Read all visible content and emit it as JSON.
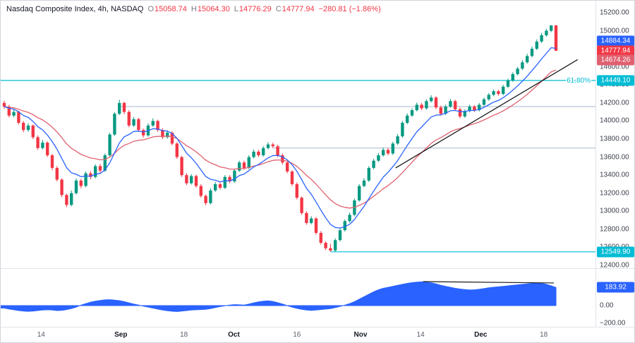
{
  "legend": {
    "symbol_text": "Nasdaq Composite Index, 4h, NASDAQ",
    "o_label": "O",
    "o": "15058.74",
    "h_label": "H",
    "h": "15064.30",
    "l_label": "L",
    "l": "14776.29",
    "c_label": "C",
    "c": "14777.94",
    "change": "−280.81 (−1.86%)"
  },
  "colors": {
    "up": "#089981",
    "down": "#f23645",
    "ma_fast": "#2962ff",
    "ma_slow": "#e0606f",
    "indicator": "#2962ff",
    "level": "#00bcd4",
    "ray": "#a9b8cc",
    "trend": "#1a1a1a",
    "axis_text": "#3c404b"
  },
  "price_axis": {
    "ticks": [
      {
        "t": "15200.00",
        "p": 15200
      },
      {
        "t": "15000.00",
        "p": 15000
      },
      {
        "t": "14800.00",
        "p": 14800
      },
      {
        "t": "14600.00",
        "p": 14600
      },
      {
        "t": "14400.00",
        "p": 14400
      },
      {
        "t": "14200.00",
        "p": 14200
      },
      {
        "t": "14000.00",
        "p": 14000
      },
      {
        "t": "13800.00",
        "p": 13800
      },
      {
        "t": "13600.00",
        "p": 13600
      },
      {
        "t": "13400.00",
        "p": 13400
      },
      {
        "t": "13200.00",
        "p": 13200
      },
      {
        "t": "13000.00",
        "p": 13000
      },
      {
        "t": "12800.00",
        "p": 12800
      },
      {
        "t": "12600.00",
        "p": 12600
      },
      {
        "t": "12400.00",
        "p": 12400
      }
    ],
    "badges": [
      {
        "t": "14884.34",
        "p": 14884.34,
        "bg": "#2962ff"
      },
      {
        "t": "14777.94",
        "p": 14777.94,
        "bg": "#f23645"
      },
      {
        "t": "14674.26",
        "p": 14674.26,
        "bg": "#e0606f"
      },
      {
        "t": "14449.10",
        "p": 14449.1,
        "bg": "#00bcd4"
      },
      {
        "t": "12549.90",
        "p": 12549.9,
        "bg": "#00bcd4"
      }
    ]
  },
  "time_axis": {
    "labels": [
      {
        "t": "14",
        "f": 0.068,
        "month": false
      },
      {
        "t": "Sep",
        "f": 0.202,
        "month": true
      },
      {
        "t": "18",
        "f": 0.308,
        "month": false
      },
      {
        "t": "Oct",
        "f": 0.392,
        "month": true
      },
      {
        "t": "16",
        "f": 0.498,
        "month": false
      },
      {
        "t": "Nov",
        "f": 0.605,
        "month": true
      },
      {
        "t": "14",
        "f": 0.706,
        "month": false
      },
      {
        "t": "Dec",
        "f": 0.807,
        "month": true
      },
      {
        "t": "18",
        "f": 0.913,
        "month": false
      }
    ]
  },
  "chart_data": {
    "type": "candlestick",
    "title": "Nasdaq Composite Index",
    "interval": "4h",
    "exchange": "NASDAQ",
    "ylim": [
      12400,
      15200
    ],
    "grid": false,
    "last_bar": {
      "o": 15058.74,
      "h": 15064.3,
      "l": 14776.29,
      "c": 14777.94,
      "change": -280.81,
      "change_pct": -1.86
    },
    "candles": [
      [
        14200,
        14225,
        14135,
        14160
      ],
      [
        14160,
        14180,
        14040,
        14060
      ],
      [
        14060,
        14130,
        14040,
        14100
      ],
      [
        14100,
        14115,
        13960,
        13980
      ],
      [
        13980,
        14000,
        13875,
        13900
      ],
      [
        13900,
        13975,
        13880,
        13950
      ],
      [
        13950,
        13960,
        13800,
        13820
      ],
      [
        13820,
        13840,
        13680,
        13700
      ],
      [
        13700,
        13790,
        13685,
        13760
      ],
      [
        13760,
        13775,
        13600,
        13620
      ],
      [
        13620,
        13635,
        13455,
        13480
      ],
      [
        13480,
        13500,
        13330,
        13350
      ],
      [
        13350,
        13365,
        13155,
        13180
      ],
      [
        13180,
        13195,
        13045,
        13070
      ],
      [
        13070,
        13230,
        13055,
        13200
      ],
      [
        13200,
        13365,
        13185,
        13340
      ],
      [
        13340,
        13360,
        13255,
        13280
      ],
      [
        13280,
        13440,
        13265,
        13420
      ],
      [
        13420,
        13445,
        13355,
        13380
      ],
      [
        13380,
        13520,
        13365,
        13500
      ],
      [
        13500,
        13525,
        13425,
        13450
      ],
      [
        13450,
        13640,
        13435,
        13620
      ],
      [
        13620,
        13870,
        13605,
        13850
      ],
      [
        13850,
        14100,
        13835,
        14080
      ],
      [
        14080,
        14235,
        14065,
        14200
      ],
      [
        14200,
        14215,
        14075,
        14100
      ],
      [
        14100,
        14120,
        13930,
        13950
      ],
      [
        13950,
        14045,
        13935,
        14020
      ],
      [
        14020,
        14035,
        13880,
        13900
      ],
      [
        13900,
        13915,
        13815,
        13840
      ],
      [
        13840,
        13975,
        13825,
        13950
      ],
      [
        13950,
        14030,
        13935,
        14000
      ],
      [
        14000,
        14015,
        13880,
        13900
      ],
      [
        13900,
        13920,
        13800,
        13820
      ],
      [
        13820,
        13895,
        13805,
        13870
      ],
      [
        13870,
        13885,
        13730,
        13750
      ],
      [
        13750,
        13765,
        13580,
        13600
      ],
      [
        13600,
        13615,
        13380,
        13400
      ],
      [
        13400,
        13420,
        13290,
        13310
      ],
      [
        13310,
        13410,
        13295,
        13390
      ],
      [
        13390,
        13405,
        13260,
        13280
      ],
      [
        13280,
        13300,
        13150,
        13170
      ],
      [
        13170,
        13185,
        13065,
        13090
      ],
      [
        13090,
        13255,
        13075,
        13230
      ],
      [
        13230,
        13325,
        13215,
        13300
      ],
      [
        13300,
        13320,
        13240,
        13260
      ],
      [
        13260,
        13400,
        13245,
        13380
      ],
      [
        13380,
        13400,
        13310,
        13330
      ],
      [
        13330,
        13470,
        13315,
        13450
      ],
      [
        13450,
        13560,
        13435,
        13540
      ],
      [
        13540,
        13560,
        13460,
        13480
      ],
      [
        13480,
        13620,
        13465,
        13600
      ],
      [
        13600,
        13685,
        13585,
        13660
      ],
      [
        13660,
        13680,
        13600,
        13620
      ],
      [
        13620,
        13720,
        13605,
        13700
      ],
      [
        13700,
        13765,
        13685,
        13740
      ],
      [
        13740,
        13760,
        13700,
        13720
      ],
      [
        13720,
        13735,
        13600,
        13620
      ],
      [
        13620,
        13640,
        13520,
        13540
      ],
      [
        13540,
        13555,
        13420,
        13440
      ],
      [
        13440,
        13455,
        13280,
        13300
      ],
      [
        13300,
        13320,
        13130,
        13150
      ],
      [
        13150,
        13165,
        12960,
        12980
      ],
      [
        12980,
        13000,
        12850,
        12870
      ],
      [
        12870,
        12945,
        12855,
        12920
      ],
      [
        12920,
        12935,
        12740,
        12760
      ],
      [
        12760,
        12780,
        12630,
        12650
      ],
      [
        12650,
        12665,
        12570,
        12590
      ],
      [
        12590,
        12640,
        12549.9,
        12565
      ],
      [
        12565,
        12700,
        12552,
        12680
      ],
      [
        12680,
        12815,
        12665,
        12790
      ],
      [
        12790,
        12910,
        12775,
        12890
      ],
      [
        12890,
        12985,
        12875,
        12960
      ],
      [
        12960,
        13140,
        12945,
        13120
      ],
      [
        13120,
        13300,
        13105,
        13280
      ],
      [
        13280,
        13365,
        13265,
        13340
      ],
      [
        13340,
        13500,
        13325,
        13480
      ],
      [
        13480,
        13580,
        13465,
        13560
      ],
      [
        13560,
        13645,
        13545,
        13620
      ],
      [
        13620,
        13705,
        13605,
        13680
      ],
      [
        13680,
        13700,
        13620,
        13640
      ],
      [
        13640,
        13770,
        13625,
        13750
      ],
      [
        13750,
        13855,
        13735,
        13830
      ],
      [
        13830,
        14000,
        13815,
        13980
      ],
      [
        13980,
        14085,
        13965,
        14060
      ],
      [
        14060,
        14140,
        14045,
        14120
      ],
      [
        14120,
        14205,
        14105,
        14180
      ],
      [
        14180,
        14200,
        14120,
        14140
      ],
      [
        14140,
        14240,
        14125,
        14220
      ],
      [
        14220,
        14285,
        14205,
        14260
      ],
      [
        14260,
        14275,
        14130,
        14150
      ],
      [
        14150,
        14170,
        14060,
        14080
      ],
      [
        14080,
        14180,
        14065,
        14160
      ],
      [
        14160,
        14245,
        14145,
        14220
      ],
      [
        14220,
        14235,
        14110,
        14130
      ],
      [
        14130,
        14150,
        14030,
        14050
      ],
      [
        14050,
        14130,
        14035,
        14110
      ],
      [
        14110,
        14180,
        14095,
        14160
      ],
      [
        14160,
        14175,
        14100,
        14120
      ],
      [
        14120,
        14200,
        14105,
        14180
      ],
      [
        14180,
        14260,
        14165,
        14240
      ],
      [
        14240,
        14310,
        14225,
        14290
      ],
      [
        14290,
        14350,
        14275,
        14330
      ],
      [
        14330,
        14345,
        14280,
        14300
      ],
      [
        14300,
        14400,
        14285,
        14380
      ],
      [
        14380,
        14470,
        14365,
        14450
      ],
      [
        14450,
        14540,
        14435,
        14520
      ],
      [
        14520,
        14600,
        14505,
        14580
      ],
      [
        14580,
        14675,
        14565,
        14650
      ],
      [
        14650,
        14745,
        14635,
        14720
      ],
      [
        14720,
        14825,
        14705,
        14800
      ],
      [
        14800,
        14905,
        14785,
        14880
      ],
      [
        14880,
        14975,
        14865,
        14950
      ],
      [
        14950,
        15020,
        14935,
        15000
      ],
      [
        15000,
        15062,
        14985,
        15058.74
      ],
      [
        15058.74,
        15064.3,
        14776.29,
        14777.94
      ]
    ],
    "ma_overlays": [
      {
        "name": "ma-fast",
        "period": 9,
        "color_key": "ma_fast",
        "last_value": 14884.34
      },
      {
        "name": "ma-slow",
        "period": 21,
        "color_key": "ma_slow",
        "last_value": 14674.26
      }
    ],
    "levels": [
      {
        "price": 14449.1,
        "label": "61.80%",
        "value_text": "14449.10",
        "from_frac": 0
      },
      {
        "price": 12549.9,
        "label": "",
        "value_text": "12549.90",
        "from_candle": 68
      }
    ],
    "rays": [
      {
        "price": 14160,
        "from_candle": 24
      },
      {
        "price": 13700,
        "from_candle": 56
      }
    ],
    "trendline": {
      "x1_frac": 0.664,
      "price1": 13480,
      "x2_frac": 0.97,
      "price2": 14680
    },
    "indicator": {
      "type": "area",
      "last_value": 183.92,
      "axis_ticks": [
        {
          "t": "0.00",
          "v": 0
        },
        {
          "t": "−200.00",
          "v": -200
        }
      ],
      "badge": {
        "t": "183.92",
        "v": 183.92,
        "bg": "#2962ff"
      },
      "trendline": {
        "x1_frac": 0.71,
        "v1": 243,
        "x2_frac": 0.93,
        "v2": 229
      },
      "values": [
        -25,
        -35,
        -42,
        -50,
        -55,
        -58,
        -55,
        -50,
        -45,
        -42,
        -45,
        -50,
        -48,
        -40,
        -30,
        -15,
        5,
        20,
        35,
        45,
        52,
        58,
        60,
        55,
        50,
        40,
        28,
        15,
        5,
        -5,
        -15,
        -25,
        -35,
        -45,
        -52,
        -57,
        -60,
        -55,
        -50,
        -45,
        -42,
        -40,
        -38,
        -30,
        -20,
        -10,
        -2,
        5,
        10,
        8,
        5,
        15,
        28,
        38,
        45,
        48,
        42,
        30,
        15,
        0,
        -15,
        -28,
        -38,
        -44,
        -48,
        -45,
        -40,
        -35,
        -30,
        -20,
        -8,
        5,
        20,
        40,
        65,
        90,
        115,
        140,
        160,
        175,
        185,
        195,
        205,
        215,
        225,
        232,
        238,
        240,
        236,
        230,
        220,
        205,
        195,
        185,
        175,
        168,
        162,
        158,
        160,
        165,
        172,
        180,
        186,
        190,
        195,
        200,
        206,
        210,
        215,
        220,
        225,
        228,
        225,
        215,
        200,
        183.92
      ]
    }
  }
}
